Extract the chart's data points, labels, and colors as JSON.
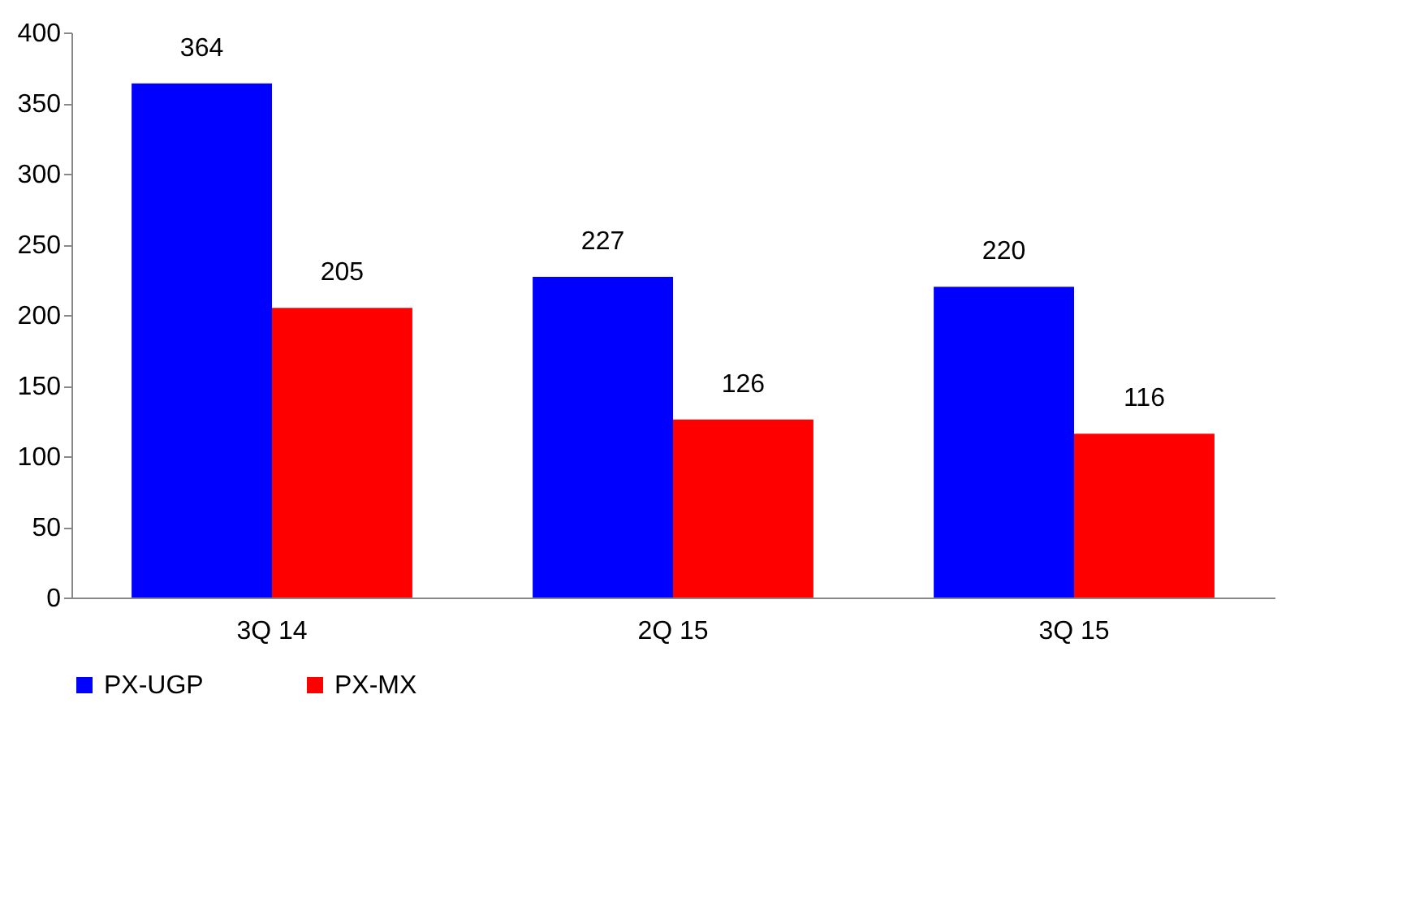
{
  "chart_data": {
    "type": "bar",
    "categories": [
      "3Q 14",
      "2Q 15",
      "3Q 15"
    ],
    "series": [
      {
        "name": "PX-UGP",
        "color": "#0000ff",
        "values": [
          364,
          227,
          220
        ]
      },
      {
        "name": "PX-MX",
        "color": "#ff0000",
        "values": [
          205,
          126,
          116
        ]
      }
    ],
    "ylim": [
      0,
      400
    ],
    "yticks": [
      0,
      50,
      100,
      150,
      200,
      250,
      300,
      350,
      400
    ],
    "data_labels": true,
    "legend": "bottom",
    "grid": false
  }
}
